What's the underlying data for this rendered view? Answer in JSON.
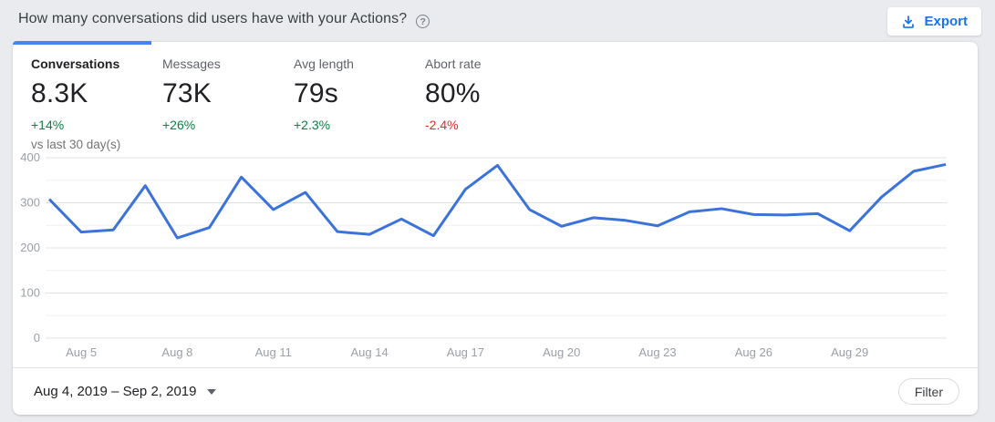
{
  "header": {
    "title": "How many conversations did users have with your Actions?",
    "export_label": "Export"
  },
  "icons": {
    "help": "?"
  },
  "tabs": [
    {
      "label": "Conversations",
      "value": "8.3K",
      "delta": "+14%",
      "trend": "positive",
      "active": true
    },
    {
      "label": "Messages",
      "value": "73K",
      "delta": "+26%",
      "trend": "positive",
      "active": false
    },
    {
      "label": "Avg length",
      "value": "79s",
      "delta": "+2.3%",
      "trend": "positive",
      "active": false
    },
    {
      "label": "Abort rate",
      "value": "80%",
      "delta": "-2.4%",
      "trend": "negative",
      "active": false
    }
  ],
  "comparison_note": "vs last 30 day(s)",
  "chart_data": {
    "type": "line",
    "title": "Conversations per day",
    "x": [
      "Aug 4",
      "Aug 5",
      "Aug 6",
      "Aug 7",
      "Aug 8",
      "Aug 9",
      "Aug 10",
      "Aug 11",
      "Aug 12",
      "Aug 13",
      "Aug 14",
      "Aug 15",
      "Aug 16",
      "Aug 17",
      "Aug 18",
      "Aug 19",
      "Aug 20",
      "Aug 21",
      "Aug 22",
      "Aug 23",
      "Aug 24",
      "Aug 25",
      "Aug 26",
      "Aug 27",
      "Aug 28",
      "Aug 29",
      "Aug 30",
      "Aug 31",
      "Sep 1"
    ],
    "values": [
      308,
      235,
      240,
      338,
      222,
      245,
      357,
      285,
      323,
      236,
      230,
      264,
      227,
      330,
      383,
      285,
      248,
      267,
      261,
      249,
      280,
      287,
      274,
      273,
      276,
      238,
      313,
      370,
      385
    ],
    "x_tick_labels": [
      "Aug 5",
      "Aug 8",
      "Aug 11",
      "Aug 14",
      "Aug 17",
      "Aug 20",
      "Aug 23",
      "Aug 26",
      "Aug 29"
    ],
    "y_ticks": [
      0,
      100,
      200,
      300,
      400
    ],
    "y_minor_step": 50,
    "ylim": [
      0,
      400
    ],
    "grid": true,
    "legend": "none",
    "line_color": "#3b73da"
  },
  "footer": {
    "date_range": "Aug 4, 2019 – Sep 2, 2019",
    "filter_label": "Filter"
  },
  "colors": {
    "accent_blue": "#1a73e8",
    "indicator_blue": "#4285f4",
    "line_blue": "#3b73da",
    "positive_green": "#0b8043",
    "negative_red": "#d93025",
    "page_background": "#e9ebee"
  }
}
